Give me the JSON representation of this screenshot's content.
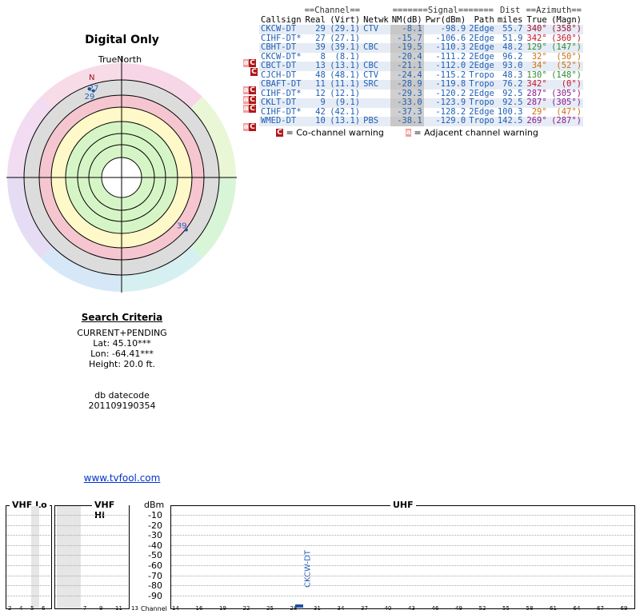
{
  "left": {
    "title": "Digital Only",
    "true_north_label": "TrueNorth",
    "north_marker": "N",
    "markers": [
      {
        "label": "27",
        "azimuth_true": 342
      },
      {
        "label": "29",
        "azimuth_true": 340
      },
      {
        "label": "39",
        "azimuth_true": 129
      }
    ]
  },
  "criteria": {
    "heading": "Search Criteria",
    "mode": "CURRENT+PENDING",
    "lat": "Lat: 45.10***",
    "lon": "Lon: -64.41***",
    "height": "Height: 20.0 ft.",
    "db_label": "db datecode",
    "db_value": "201109190354",
    "link": "www.tvfool.com"
  },
  "table": {
    "group_headers": {
      "channel": "==Channel==",
      "signal": "=======Signal=======",
      "dist": "Dist",
      "azimuth": "==Azimuth=="
    },
    "col_headers": [
      "Callsign",
      "Real",
      "(Virt)",
      "Netwk",
      "NM(dB)",
      "Pwr(dBm)",
      "Path",
      "miles",
      "True",
      "(Magn)"
    ],
    "rows": [
      {
        "warn": "",
        "callsign": "CKCW-DT",
        "real": "29",
        "virt": "(29.1)",
        "netwk": "CTV",
        "nm": "-8.1",
        "pwr": "-98.9",
        "path": "2Edge",
        "dist": "55.7",
        "az_true": "340°",
        "az_magn": "(358°)",
        "az_color": "#a0102a"
      },
      {
        "warn": "",
        "callsign": "CIHF-DT*",
        "real": "27",
        "virt": "(27.1)",
        "netwk": "",
        "nm": "-15.7",
        "pwr": "-106.6",
        "path": "2Edge",
        "dist": "51.9",
        "az_true": "342°",
        "az_magn": "(360°)",
        "az_color": "#c8102a"
      },
      {
        "warn": "",
        "callsign": "CBHT-DT",
        "real": "39",
        "virt": "(39.1)",
        "netwk": "CBC",
        "nm": "-19.5",
        "pwr": "-110.3",
        "path": "2Edge",
        "dist": "48.2",
        "az_true": "129°",
        "az_magn": "(147°)",
        "az_color": "#2e8b2e"
      },
      {
        "warn": "aC",
        "callsign": "CKCW-DT*",
        "real": "8",
        "virt": "(8.1)",
        "netwk": "",
        "nm": "-20.4",
        "pwr": "-111.2",
        "path": "2Edge",
        "dist": "96.2",
        "az_true": "32°",
        "az_magn": "(50°)",
        "az_color": "#d07010"
      },
      {
        "warn": "C",
        "callsign": "CBCT-DT",
        "real": "13",
        "virt": "(13.1)",
        "netwk": "CBC",
        "nm": "-21.1",
        "pwr": "-112.0",
        "path": "2Edge",
        "dist": "93.0",
        "az_true": "34°",
        "az_magn": "(52°)",
        "az_color": "#d07010"
      },
      {
        "warn": "",
        "callsign": "CJCH-DT",
        "real": "48",
        "virt": "(48.1)",
        "netwk": "CTV",
        "nm": "-24.4",
        "pwr": "-115.2",
        "path": "Tropo",
        "dist": "48.3",
        "az_true": "130°",
        "az_magn": "(148°)",
        "az_color": "#2e8b2e"
      },
      {
        "warn": "aC",
        "callsign": "CBAFT-DT",
        "real": "11",
        "virt": "(11.1)",
        "netwk": "SRC",
        "nm": "-28.9",
        "pwr": "-119.8",
        "path": "Tropo",
        "dist": "76.2",
        "az_true": "342°",
        "az_magn": "(0°)",
        "az_color": "#c8102a"
      },
      {
        "warn": "aC",
        "callsign": "CIHF-DT*",
        "real": "12",
        "virt": "(12.1)",
        "netwk": "",
        "nm": "-29.3",
        "pwr": "-120.2",
        "path": "2Edge",
        "dist": "92.5",
        "az_true": "287°",
        "az_magn": "(305°)",
        "az_color": "#8a1a8a"
      },
      {
        "warn": "aC",
        "callsign": "CKLT-DT",
        "real": "9",
        "virt": "(9.1)",
        "netwk": "",
        "nm": "-33.0",
        "pwr": "-123.9",
        "path": "Tropo",
        "dist": "92.5",
        "az_true": "287°",
        "az_magn": "(305°)",
        "az_color": "#8a1a8a"
      },
      {
        "warn": "",
        "callsign": "CIHF-DT*",
        "real": "42",
        "virt": "(42.1)",
        "netwk": "",
        "nm": "-37.3",
        "pwr": "-128.2",
        "path": "2Edge",
        "dist": "100.3",
        "az_true": "29°",
        "az_magn": "(47°)",
        "az_color": "#d07010"
      },
      {
        "warn": "aC",
        "callsign": "WMED-DT",
        "real": "10",
        "virt": "(13.1)",
        "netwk": "PBS",
        "nm": "-38.1",
        "pwr": "-129.0",
        "path": "Tropo",
        "dist": "142.5",
        "az_true": "269°",
        "az_magn": "(287°)",
        "az_color": "#8a1a8a"
      }
    ]
  },
  "legend": {
    "co_icon": "C",
    "co_text": "= Co-channel warning",
    "adj_icon": "a",
    "adj_text": "= Adjacent channel warning"
  },
  "spectrum": {
    "vhf_lo": "VHF Lo",
    "vhf_hi": "VHF Hi",
    "uhf": "UHF",
    "dbm_label": "dBm",
    "channel_label": "Channel",
    "dbm_levels": [
      "-10",
      "-20",
      "-30",
      "-40",
      "-50",
      "-60",
      "-70",
      "-80",
      "-90"
    ],
    "vhf_lo_ticks": [
      "2",
      "4",
      "5",
      "6"
    ],
    "vhf_hi_ticks": [
      "7",
      "9",
      "11",
      "13"
    ],
    "uhf_ticks": [
      "14",
      "16",
      "19",
      "22",
      "25",
      "28",
      "31",
      "34",
      "37",
      "40",
      "43",
      "46",
      "49",
      "52",
      "55",
      "58",
      "61",
      "64",
      "67",
      "69"
    ],
    "bar_label": "CKCW-DT"
  }
}
